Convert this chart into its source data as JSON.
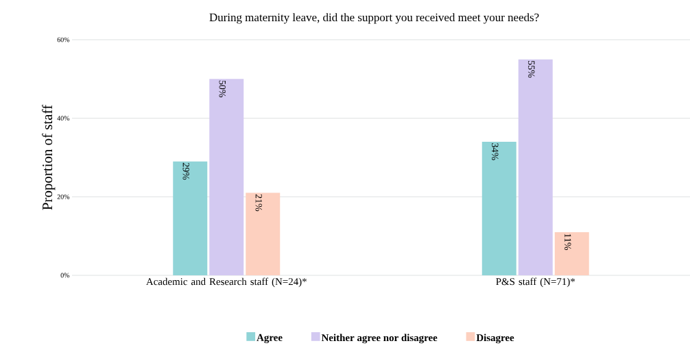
{
  "chart_data": {
    "type": "bar",
    "title": "During maternity leave, did the support you received meet your needs?",
    "ylabel": "Proportion of staff",
    "categories": [
      "Academic and Research staff (N=24)*",
      "P&S staff (N=71)*"
    ],
    "series": [
      {
        "name": "Agree",
        "color": "#90d4d7",
        "values": [
          29,
          34
        ],
        "value_labels": [
          "29%",
          "34%"
        ]
      },
      {
        "name": "Neither agree nor disagree",
        "color": "#d3c9f1",
        "values": [
          50,
          55
        ],
        "value_labels": [
          "50%",
          "55%"
        ]
      },
      {
        "name": "Disagree",
        "color": "#fdd0bf",
        "values": [
          21,
          11
        ],
        "value_labels": [
          "21%",
          "11%"
        ]
      }
    ],
    "ylim": [
      0,
      60
    ],
    "yticks": [
      {
        "value": 0,
        "label": "0%"
      },
      {
        "value": 20,
        "label": "20%"
      },
      {
        "value": 40,
        "label": "40%"
      },
      {
        "value": 60,
        "label": "60%"
      }
    ],
    "grid": "y",
    "legend": "bottom"
  }
}
